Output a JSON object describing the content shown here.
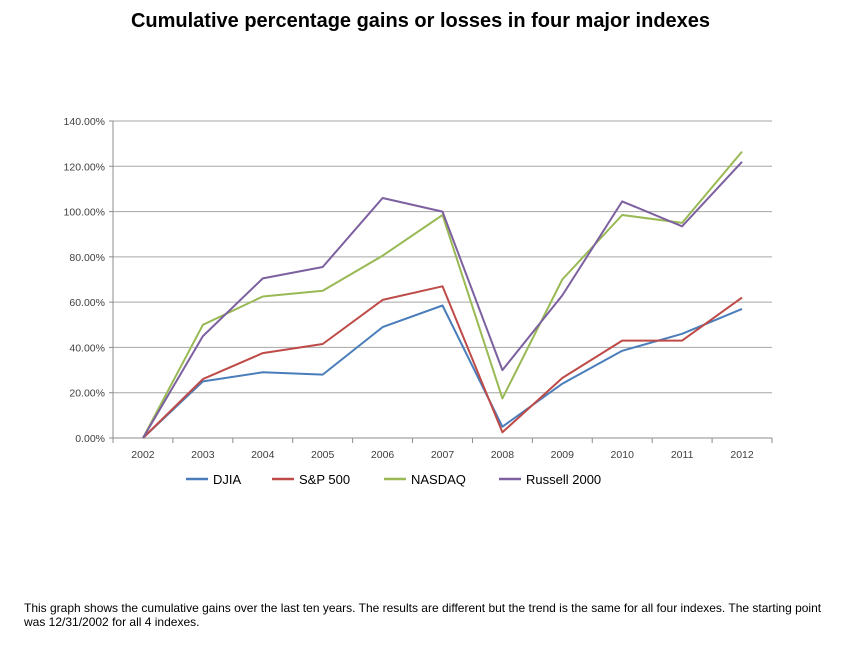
{
  "chart_data": {
    "type": "line",
    "title": "Cumulative percentage gains or losses in four major indexes",
    "xlabel": "",
    "ylabel": "",
    "x": [
      "2002",
      "2003",
      "2004",
      "2005",
      "2006",
      "2007",
      "2008",
      "2009",
      "2010",
      "2011",
      "2012"
    ],
    "ylim": [
      0,
      140
    ],
    "yticks": [
      0,
      20,
      40,
      60,
      80,
      100,
      120,
      140
    ],
    "ytick_labels": [
      "0.00%",
      "20.00%",
      "40.00%",
      "60.00%",
      "80.00%",
      "100.00%",
      "120.00%",
      "140.00%"
    ],
    "grid": true,
    "legend_position": "bottom",
    "series": [
      {
        "name": "DJIA",
        "color": "#4a7ebb",
        "values": [
          0,
          25,
          29,
          28,
          49,
          58.5,
          5,
          24,
          38.5,
          46,
          57
        ]
      },
      {
        "name": "S&P 500",
        "color": "#be4b48",
        "values": [
          0,
          26,
          37.5,
          41.5,
          61,
          67,
          2.5,
          26.5,
          43,
          43,
          62
        ]
      },
      {
        "name": "NASDAQ",
        "color": "#98b954",
        "values": [
          0,
          50,
          62.5,
          65,
          80.5,
          98.5,
          17.5,
          70,
          98.5,
          95,
          126.5
        ]
      },
      {
        "name": "Russell 2000",
        "color": "#7d60a0",
        "values": [
          0,
          45,
          70.5,
          75.5,
          106,
          100,
          30,
          63,
          104.5,
          93.5,
          122
        ]
      }
    ]
  },
  "caption": "This graph shows the cumulative gains over the last ten years.  The results are different but the trend is the same for all four indexes. The starting point was 12/31/2002 for all 4 indexes."
}
